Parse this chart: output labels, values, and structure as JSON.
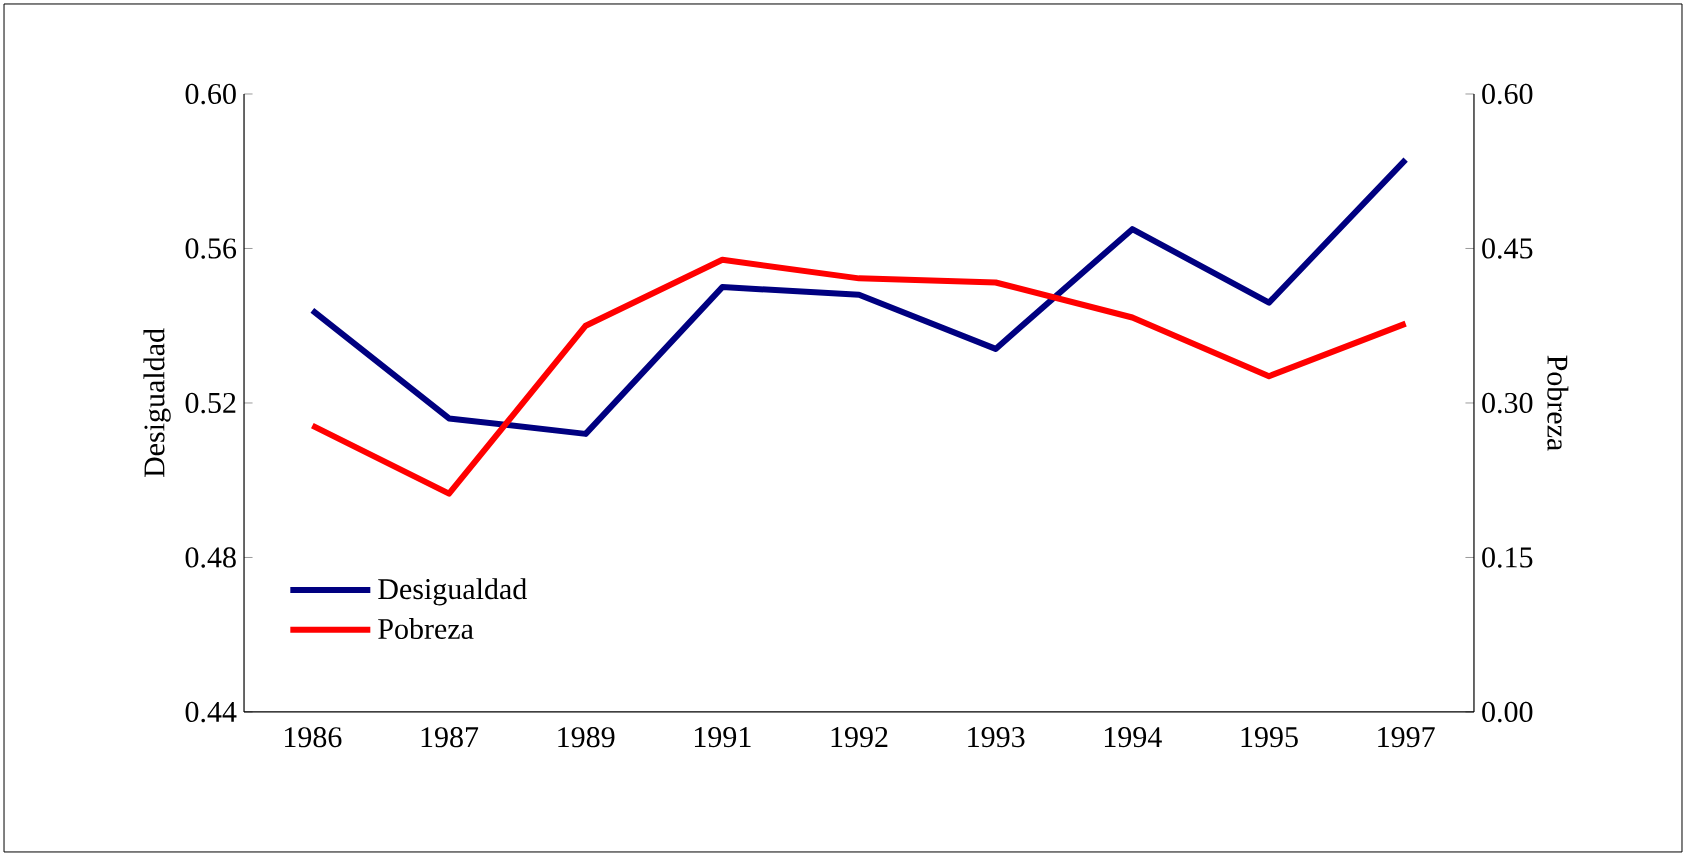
{
  "chart_data": {
    "type": "line",
    "categories": [
      "1986",
      "1987",
      "1989",
      "1991",
      "1992",
      "1993",
      "1994",
      "1995",
      "1997"
    ],
    "series": [
      {
        "name": "Desigualdad",
        "color": "#000080",
        "values": [
          0.544,
          0.516,
          0.512,
          0.55,
          0.548,
          0.534,
          0.565,
          0.546,
          0.583
        ]
      },
      {
        "name": "Pobreza",
        "color": "#ff0000",
        "axis": "y2",
        "values": [
          0.278,
          0.212,
          0.375,
          0.439,
          0.421,
          0.417,
          0.383,
          0.326,
          0.377
        ]
      }
    ],
    "ylabel": "Desigualdad",
    "y2label": "Pobreza",
    "ylim": [
      0.44,
      0.6
    ],
    "yticks": [
      {
        "value": 0.44,
        "label": "0.44"
      },
      {
        "value": 0.48,
        "label": "0.48"
      },
      {
        "value": 0.52,
        "label": "0.52"
      },
      {
        "value": 0.56,
        "label": "0.56"
      },
      {
        "value": 0.6,
        "label": "0.60"
      }
    ],
    "y2lim": [
      0,
      0.6
    ],
    "y2ticks": [
      {
        "value": 0,
        "label": "0.00"
      },
      {
        "value": 0.15,
        "label": "0.15"
      },
      {
        "value": 0.3,
        "label": "0.30"
      },
      {
        "value": 0.45,
        "label": "0.45"
      },
      {
        "value": 0.6,
        "label": "0.60"
      }
    ],
    "grid": false,
    "legend": "bottom left",
    "marker": "none",
    "line_style": "solid"
  }
}
